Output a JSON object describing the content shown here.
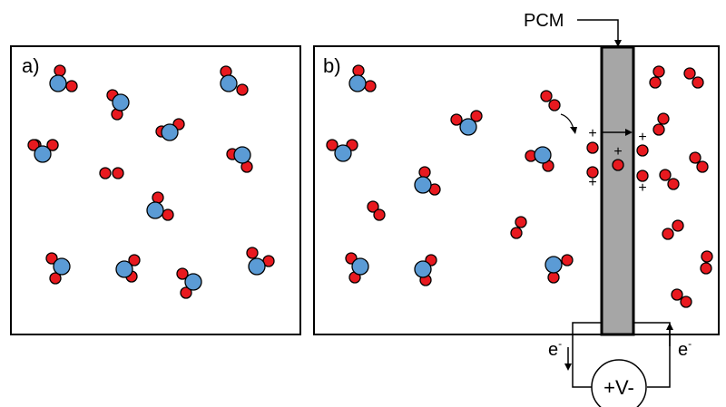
{
  "panels": {
    "a_label": "a)",
    "b_label": "b)"
  },
  "pcm_label": "PCM",
  "source_label": "+V-",
  "electron_left": {
    "base": "e",
    "sup": "-"
  },
  "electron_right": {
    "base": "e",
    "sup": "-"
  },
  "charge_sign": "+",
  "colors": {
    "oxygen": "#e8191f",
    "carbon": "#5b9bd5",
    "pcm_fill": "#a6a6a6",
    "outline": "#000000"
  },
  "icons": {
    "co2_molecule": "co2-molecule-icon",
    "o2_molecule": "o2-molecule-icon",
    "oxygen_ion": "oxygen-ion-icon"
  }
}
